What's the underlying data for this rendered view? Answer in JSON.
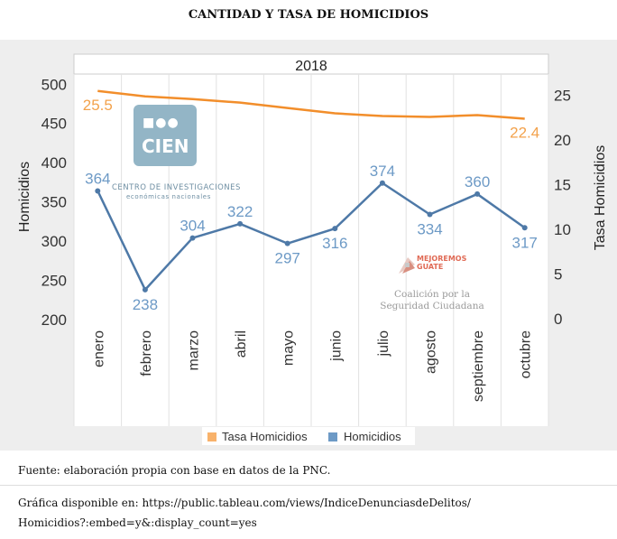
{
  "header": {
    "title": "CANTIDAD Y TASA DE HOMICIDIOS"
  },
  "chart_data": {
    "type": "line",
    "title": "2018",
    "categories": [
      "enero",
      "febrero",
      "marzo",
      "abril",
      "mayo",
      "junio",
      "julio",
      "agosto",
      "septiembre",
      "octubre"
    ],
    "series": [
      {
        "name": "Homicidios",
        "axis": "left",
        "color": "#4e79a7",
        "values": [
          364,
          238,
          304,
          322,
          297,
          316,
          374,
          334,
          360,
          317
        ],
        "data_labels": [
          "364",
          "238",
          "304",
          "322",
          "297",
          "316",
          "374",
          "334",
          "360",
          "317"
        ]
      },
      {
        "name": "Tasa Homicidios",
        "axis": "right",
        "color": "#f28e2b",
        "values": [
          25.5,
          24.9,
          24.6,
          24.2,
          23.6,
          23.0,
          22.7,
          22.6,
          22.8,
          22.4
        ],
        "data_labels": [
          "25.5",
          "",
          "",
          "",
          "",
          "",
          "",
          "",
          "",
          "22.4"
        ]
      }
    ],
    "y_left": {
      "label": "Homicidios",
      "ticks": [
        "500",
        "450",
        "400",
        "350",
        "300",
        "250",
        "200"
      ],
      "range": [
        193,
        513
      ]
    },
    "y_right": {
      "label": "Tasa Homicidios",
      "ticks": [
        "25",
        "20",
        "15",
        "10",
        "5",
        "0"
      ],
      "range": [
        -0.7,
        27.4
      ]
    },
    "legend": {
      "placement": "bottom",
      "items": [
        {
          "name": "Tasa Homicidios",
          "color": "#f28e2b"
        },
        {
          "name": "Homicidios",
          "color": "#4e79a7"
        }
      ]
    }
  },
  "logos": {
    "cien": {
      "dots": "■●●",
      "word": "CIEN",
      "sub1": "CENTRO DE INVESTIGACIONES",
      "sub2": "económicas nacionales"
    },
    "coalicion": {
      "brand_line1": "MEJOREMOS",
      "brand_line2": "GUATE",
      "line1": "Coalición por la",
      "line2": "Seguridad Ciudadana"
    }
  },
  "footer": {
    "source": "Fuente: elaboración propia con base en datos de la PNC.",
    "link_line1": "Gráfica disponible en: https://public.tableau.com/views/IndiceDenunciasdeDelitos/",
    "link_line2": "Homicidios?:embed=y&:display_count=yes"
  }
}
